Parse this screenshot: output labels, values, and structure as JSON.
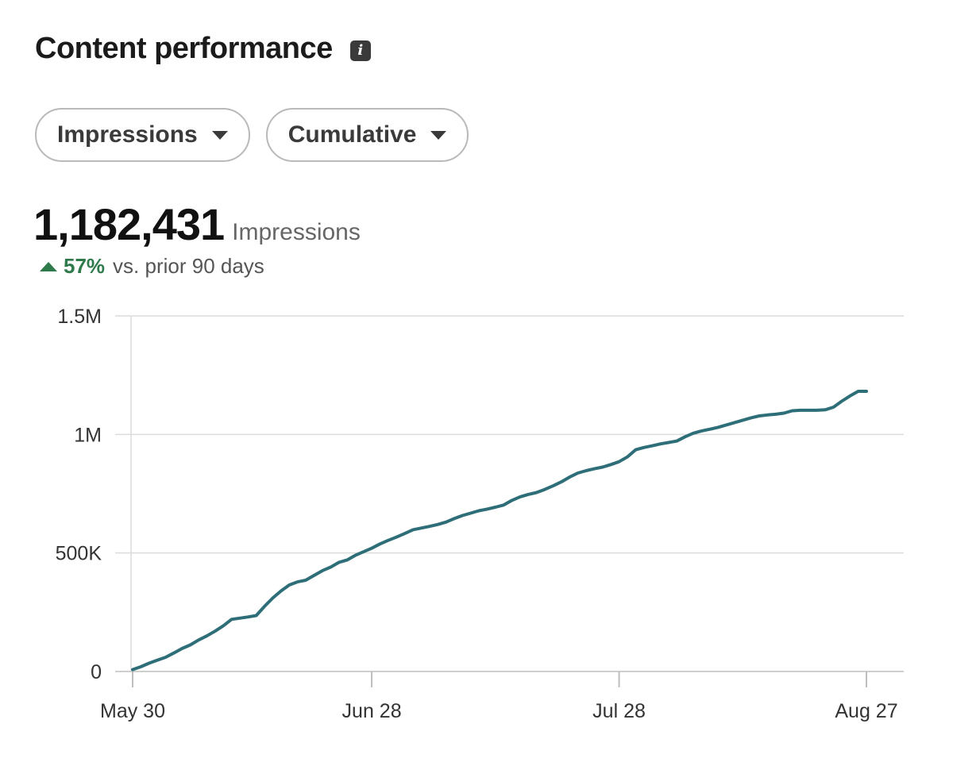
{
  "header": {
    "title": "Content performance",
    "info_icon": "info-icon"
  },
  "filters": [
    {
      "label": "Impressions",
      "icon": "chevron-down-icon"
    },
    {
      "label": "Cumulative",
      "icon": "chevron-down-icon"
    }
  ],
  "metric": {
    "value": "1,182,431",
    "label": "Impressions",
    "change_pct": "57%",
    "change_label": "vs. prior 90 days",
    "change_icon": "up-arrow-icon",
    "change_color": "#2f7a4b"
  },
  "chart_data": {
    "type": "line",
    "line_color": "#2e6e78",
    "grid": true,
    "ylim": [
      0,
      1500000
    ],
    "yticks": [
      {
        "value": 0,
        "label": "0"
      },
      {
        "value": 500000,
        "label": "500K"
      },
      {
        "value": 1000000,
        "label": "1M"
      },
      {
        "value": 1500000,
        "label": "1.5M"
      }
    ],
    "xlim": [
      "2025-05-30",
      "2025-08-27"
    ],
    "xticks": [
      {
        "value": "2025-05-30",
        "label": "May 30"
      },
      {
        "value": "2025-06-28",
        "label": "Jun 28"
      },
      {
        "value": "2025-07-28",
        "label": "Jul 28"
      },
      {
        "value": "2025-08-27",
        "label": "Aug 27"
      }
    ],
    "series": [
      {
        "x": [
          "2025-05-30",
          "2025-05-31",
          "2025-06-01",
          "2025-06-02",
          "2025-06-03",
          "2025-06-04",
          "2025-06-05",
          "2025-06-06",
          "2025-06-07",
          "2025-06-08",
          "2025-06-09",
          "2025-06-10",
          "2025-06-11",
          "2025-06-12",
          "2025-06-13",
          "2025-06-14",
          "2025-06-15",
          "2025-06-16",
          "2025-06-17",
          "2025-06-18",
          "2025-06-19",
          "2025-06-20",
          "2025-06-21",
          "2025-06-22",
          "2025-06-23",
          "2025-06-24",
          "2025-06-25",
          "2025-06-26",
          "2025-06-27",
          "2025-06-28",
          "2025-06-29",
          "2025-06-30",
          "2025-07-01",
          "2025-07-02",
          "2025-07-03",
          "2025-07-04",
          "2025-07-05",
          "2025-07-06",
          "2025-07-07",
          "2025-07-08",
          "2025-07-09",
          "2025-07-10",
          "2025-07-11",
          "2025-07-12",
          "2025-07-13",
          "2025-07-14",
          "2025-07-15",
          "2025-07-16",
          "2025-07-17",
          "2025-07-18",
          "2025-07-19",
          "2025-07-20",
          "2025-07-21",
          "2025-07-22",
          "2025-07-23",
          "2025-07-24",
          "2025-07-25",
          "2025-07-26",
          "2025-07-27",
          "2025-07-28",
          "2025-07-29",
          "2025-07-30",
          "2025-07-31",
          "2025-08-01",
          "2025-08-02",
          "2025-08-03",
          "2025-08-04",
          "2025-08-05",
          "2025-08-06",
          "2025-08-07",
          "2025-08-08",
          "2025-08-09",
          "2025-08-10",
          "2025-08-11",
          "2025-08-12",
          "2025-08-13",
          "2025-08-14",
          "2025-08-15",
          "2025-08-16",
          "2025-08-17",
          "2025-08-18",
          "2025-08-19",
          "2025-08-20",
          "2025-08-21",
          "2025-08-22",
          "2025-08-23",
          "2025-08-24",
          "2025-08-25",
          "2025-08-26",
          "2025-08-27"
        ],
        "values": [
          8000,
          20000,
          35000,
          48000,
          60000,
          78000,
          97000,
          112000,
          133000,
          150000,
          170000,
          193000,
          220000,
          225000,
          230000,
          236000,
          275000,
          310000,
          340000,
          365000,
          378000,
          385000,
          405000,
          425000,
          440000,
          460000,
          470000,
          490000,
          505000,
          520000,
          538000,
          553000,
          567000,
          582000,
          598000,
          605000,
          612000,
          620000,
          630000,
          645000,
          658000,
          668000,
          678000,
          685000,
          693000,
          702000,
          722000,
          737000,
          747000,
          755000,
          768000,
          783000,
          800000,
          820000,
          837000,
          847000,
          855000,
          862000,
          873000,
          885000,
          905000,
          935000,
          945000,
          952000,
          960000,
          966000,
          972000,
          990000,
          1005000,
          1015000,
          1022000,
          1030000,
          1040000,
          1050000,
          1060000,
          1070000,
          1078000,
          1082000,
          1085000,
          1090000,
          1100000,
          1102000,
          1102000,
          1102000,
          1104000,
          1115000,
          1140000,
          1162000,
          1182000,
          1182000
        ]
      }
    ]
  }
}
